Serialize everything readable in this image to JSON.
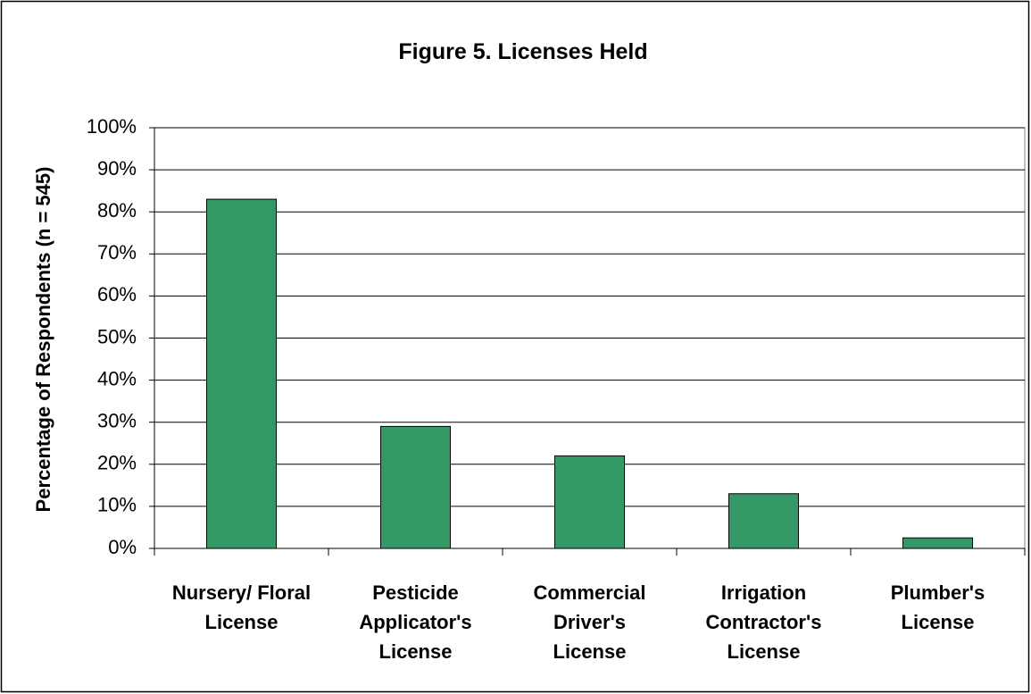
{
  "chart_data": {
    "type": "bar",
    "title": "Figure 5.  Licenses Held",
    "y_label": "Percentage of Respondents (n = 545)",
    "categories": [
      "Nursery/ Floral\nLicense",
      "Pesticide\nApplicator's\nLicense",
      "Commercial\nDriver's\nLicense",
      "Irrigation\nContractor's\nLicense",
      "Plumber's\nLicense"
    ],
    "values": [
      83,
      29,
      22,
      13,
      2.5
    ],
    "color": "#339966",
    "ylim": [
      0,
      100
    ],
    "yticks": [
      {
        "value": 0,
        "label": "0%"
      },
      {
        "value": 10,
        "label": "10%"
      },
      {
        "value": 20,
        "label": "20%"
      },
      {
        "value": 30,
        "label": "30%"
      },
      {
        "value": 40,
        "label": "40%"
      },
      {
        "value": 50,
        "label": "50%"
      },
      {
        "value": 60,
        "label": "60%"
      },
      {
        "value": 70,
        "label": "70%"
      },
      {
        "value": 80,
        "label": "80%"
      },
      {
        "value": 90,
        "label": "90%"
      },
      {
        "value": 100,
        "label": "100%"
      }
    ],
    "grid": true
  }
}
